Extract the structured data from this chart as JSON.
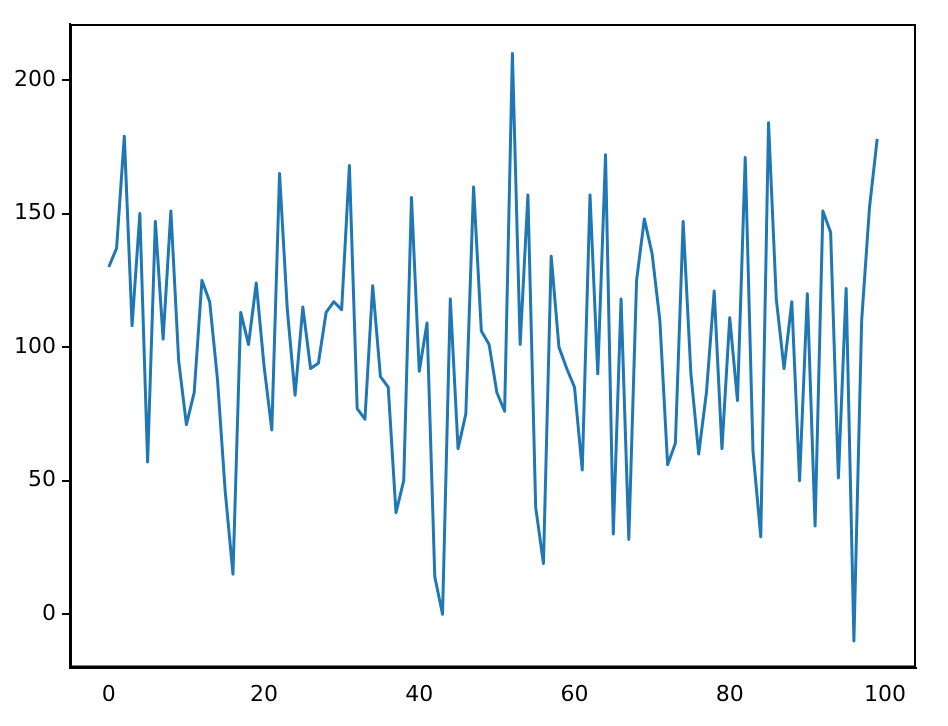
{
  "chart_data": {
    "type": "line",
    "x": [
      0,
      1,
      2,
      3,
      4,
      5,
      6,
      7,
      8,
      9,
      10,
      11,
      12,
      13,
      14,
      15,
      16,
      17,
      18,
      19,
      20,
      21,
      22,
      23,
      24,
      25,
      26,
      27,
      28,
      29,
      30,
      31,
      32,
      33,
      34,
      35,
      36,
      37,
      38,
      39,
      40,
      41,
      42,
      43,
      44,
      45,
      46,
      47,
      48,
      49,
      50,
      51,
      52,
      53,
      54,
      55,
      56,
      57,
      58,
      59,
      60,
      61,
      62,
      63,
      64,
      65,
      66,
      67,
      68,
      69,
      70,
      71,
      72,
      73,
      74,
      75,
      76,
      77,
      78,
      79,
      80,
      81,
      82,
      83,
      84,
      85,
      86,
      87,
      88,
      89,
      90,
      91,
      92,
      93,
      94,
      95,
      96,
      97,
      98,
      99
    ],
    "series": [
      {
        "color": "#1f77b4",
        "values": [
          130,
          137,
          179,
          108,
          150,
          57,
          147,
          103,
          151,
          95,
          71,
          83,
          125,
          117,
          88,
          46,
          15,
          113,
          101,
          124,
          93,
          69,
          165,
          114,
          82,
          115,
          92,
          94,
          113,
          117,
          114,
          168,
          77,
          73,
          123,
          89,
          85,
          38,
          50,
          156,
          91,
          109,
          14,
          0,
          118,
          62,
          75,
          160,
          106,
          101,
          83,
          76,
          210,
          101,
          157,
          40,
          19,
          134,
          100,
          92,
          85,
          54,
          157,
          90,
          172,
          30,
          118,
          28,
          125,
          148,
          135,
          110,
          56,
          64,
          147,
          90,
          60,
          83,
          121,
          62,
          111,
          80,
          171,
          61,
          29,
          184,
          118,
          92,
          117,
          50,
          120,
          33,
          151,
          143,
          51,
          122,
          -10,
          110,
          152,
          178
        ]
      }
    ],
    "xlim": [
      -5,
      104
    ],
    "xticks": [
      0,
      20,
      40,
      60,
      80,
      100
    ],
    "ylim": [
      -20,
      221
    ],
    "yticks": [
      0,
      50,
      100,
      150,
      200
    ],
    "grid": false,
    "legend": false,
    "marker": "none",
    "line_style": "solid"
  }
}
